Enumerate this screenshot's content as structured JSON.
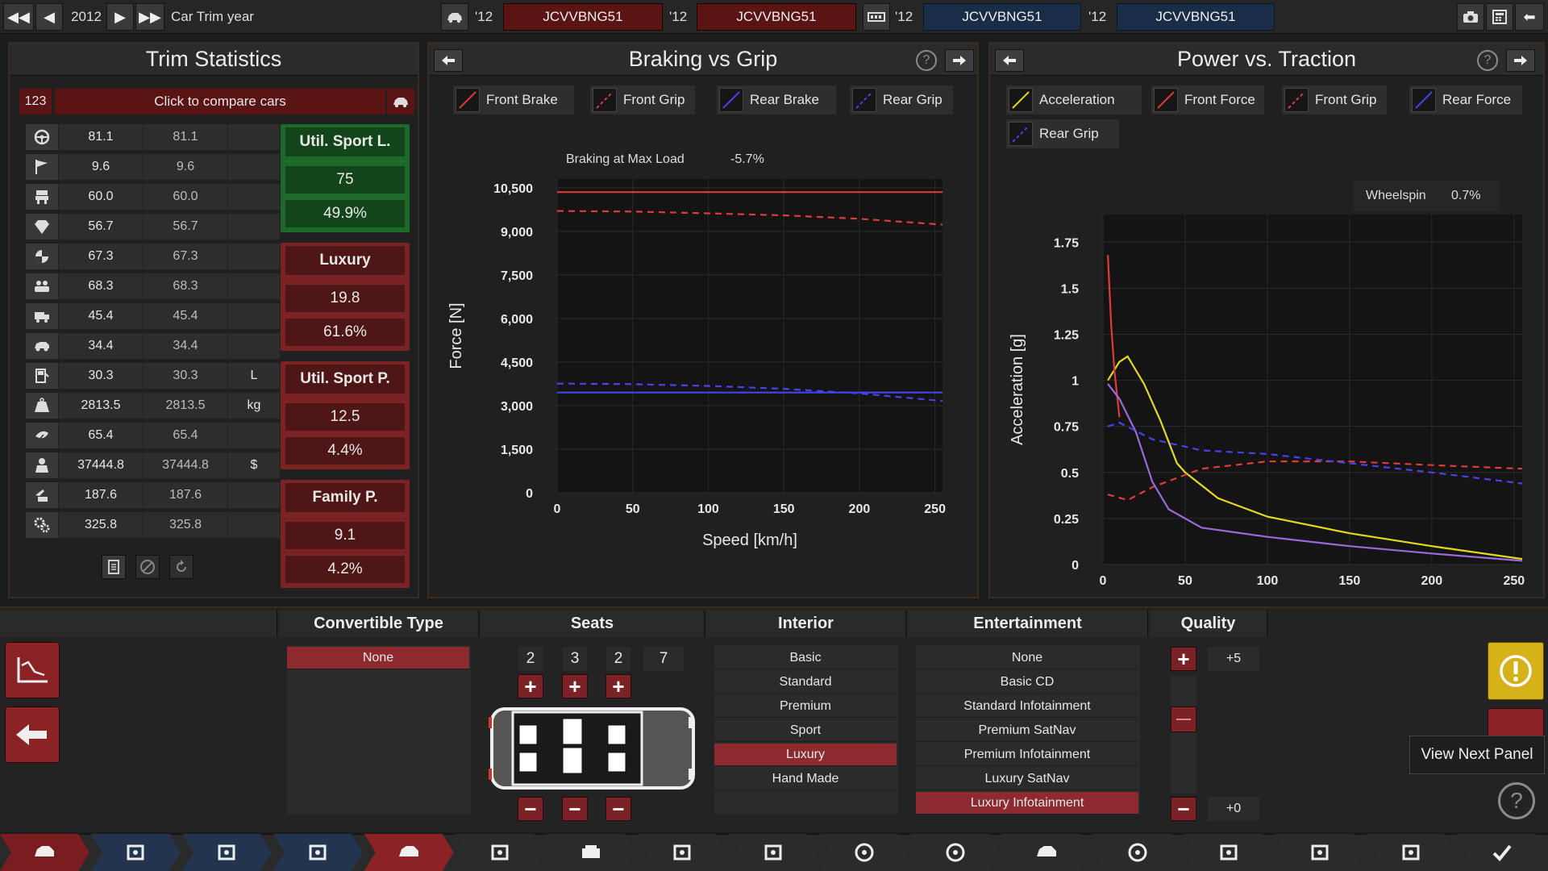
{
  "topbar": {
    "year": "2012",
    "title": "Car Trim year",
    "cars": [
      {
        "year": "'12",
        "code": "JCVVBNG51"
      },
      {
        "year": "'12",
        "code": "JCVVBNG51"
      },
      {
        "year": "'12",
        "code": "JCVVBNG51"
      },
      {
        "year": "'12",
        "code": "JCVVBNG51"
      }
    ]
  },
  "trim": {
    "title": "Trim Statistics",
    "compare_badge": "123",
    "compare_label": "Click to compare cars",
    "rows": [
      {
        "icon": "steering-wheel-icon",
        "a": "81.1",
        "b": "81.1",
        "unit": ""
      },
      {
        "icon": "race-flag-icon",
        "a": "9.6",
        "b": "9.6",
        "unit": ""
      },
      {
        "icon": "seat-icon",
        "a": "60.0",
        "b": "60.0",
        "unit": ""
      },
      {
        "icon": "gem-icon",
        "a": "56.7",
        "b": "56.7",
        "unit": ""
      },
      {
        "icon": "balance-icon",
        "a": "67.3",
        "b": "67.3",
        "unit": ""
      },
      {
        "icon": "passengers-icon",
        "a": "68.3",
        "b": "68.3",
        "unit": ""
      },
      {
        "icon": "truck-icon",
        "a": "45.4",
        "b": "45.4",
        "unit": ""
      },
      {
        "icon": "offroad-car-icon",
        "a": "34.4",
        "b": "34.4",
        "unit": ""
      },
      {
        "icon": "fuel-icon",
        "a": "30.3",
        "b": "30.3",
        "unit": "L"
      },
      {
        "icon": "weight-icon",
        "a": "2813.5",
        "b": "2813.5",
        "unit": "kg"
      },
      {
        "icon": "environment-icon",
        "a": "65.4",
        "b": "65.4",
        "unit": ""
      },
      {
        "icon": "cost-icon",
        "a": "37444.8",
        "b": "37444.8",
        "unit": "$"
      },
      {
        "icon": "service-icon",
        "a": "187.6",
        "b": "187.6",
        "unit": ""
      },
      {
        "icon": "gears-icon",
        "a": "325.8",
        "b": "325.8",
        "unit": ""
      }
    ],
    "categories": [
      {
        "name": "Util. Sport L.",
        "score": "75",
        "pct": "49.9%",
        "color": "#1e6a2a"
      },
      {
        "name": "Luxury",
        "score": "19.8",
        "pct": "61.6%",
        "color": "#7a2224"
      },
      {
        "name": "Util. Sport P.",
        "score": "12.5",
        "pct": "4.4%",
        "color": "#7a2224"
      },
      {
        "name": "Family P.",
        "score": "9.1",
        "pct": "4.2%",
        "color": "#7a2224"
      }
    ]
  },
  "braking": {
    "title": "Braking vs Grip",
    "legend": [
      "Front Brake",
      "Front Grip",
      "Rear Brake",
      "Rear Grip"
    ],
    "annotation_label": "Braking at Max Load",
    "annotation_value": "-5.7%"
  },
  "power": {
    "title": "Power vs. Traction",
    "legend": [
      "Acceleration",
      "Front Force",
      "Front Grip",
      "Rear Force",
      "Rear Grip"
    ],
    "annotation_label": "Wheelspin",
    "annotation_value": "0.7%"
  },
  "chart_data": [
    {
      "type": "line",
      "xlabel": "Speed [km/h]",
      "ylabel": "Force [N]",
      "xlim": [
        0,
        255
      ],
      "ylim": [
        0,
        10800
      ],
      "xticks": [
        "0",
        "50",
        "100",
        "150",
        "200",
        "250"
      ],
      "yticks": [
        "0",
        "1,500",
        "3,000",
        "4,500",
        "6,000",
        "7,500",
        "9,000",
        "10,500"
      ],
      "x": [
        0,
        50,
        100,
        150,
        200,
        255
      ],
      "series": [
        {
          "name": "Front Brake",
          "color": "#e03a3a",
          "dash": false,
          "values": [
            10350,
            10350,
            10350,
            10350,
            10350,
            10350
          ]
        },
        {
          "name": "Front Grip",
          "color": "#e03a3a",
          "dash": true,
          "values": [
            9700,
            9680,
            9620,
            9550,
            9430,
            9230
          ]
        },
        {
          "name": "Rear Brake",
          "color": "#4444ee",
          "dash": false,
          "values": [
            3450,
            3450,
            3450,
            3450,
            3450,
            3450
          ]
        },
        {
          "name": "Rear Grip",
          "color": "#4444ee",
          "dash": true,
          "values": [
            3760,
            3740,
            3680,
            3580,
            3420,
            3160
          ]
        }
      ]
    },
    {
      "type": "line",
      "xlabel": "Speed [km/h]",
      "ylabel": "Acceleration [g]",
      "xlim": [
        0,
        255
      ],
      "ylim": [
        0,
        1.9
      ],
      "xticks": [
        "0",
        "50",
        "100",
        "150",
        "200",
        "250"
      ],
      "yticks": [
        "0",
        "0.25",
        "0.5",
        "0.75",
        "1",
        "1.25",
        "1.5",
        "1.75"
      ],
      "series": [
        {
          "name": "Acceleration",
          "color": "#e6d81e",
          "dash": false,
          "x": [
            3,
            10,
            15,
            25,
            35,
            45,
            50,
            70,
            100,
            150,
            200,
            255
          ],
          "values": [
            1.0,
            1.1,
            1.13,
            0.98,
            0.78,
            0.55,
            0.5,
            0.36,
            0.26,
            0.17,
            0.1,
            0.03
          ]
        },
        {
          "name": "Front Force",
          "color": "#e03a3a",
          "dash": false,
          "x": [
            3,
            5,
            7,
            10
          ],
          "values": [
            1.68,
            1.3,
            1.05,
            0.8
          ]
        },
        {
          "name": "Front Grip",
          "color": "#e03a3a",
          "dash": true,
          "x": [
            3,
            15,
            30,
            60,
            100,
            150,
            200,
            255
          ],
          "values": [
            0.38,
            0.35,
            0.42,
            0.52,
            0.56,
            0.56,
            0.54,
            0.52
          ]
        },
        {
          "name": "Rear Force",
          "color": "#9a6ad8",
          "dash": false,
          "x": [
            3,
            10,
            20,
            30,
            40,
            60,
            100,
            150,
            200,
            255
          ],
          "values": [
            0.98,
            0.9,
            0.72,
            0.45,
            0.3,
            0.2,
            0.15,
            0.1,
            0.06,
            0.02
          ]
        },
        {
          "name": "Rear Grip",
          "color": "#4444ee",
          "dash": true,
          "x": [
            3,
            10,
            30,
            60,
            100,
            150,
            200,
            255
          ],
          "values": [
            0.75,
            0.77,
            0.68,
            0.62,
            0.6,
            0.55,
            0.5,
            0.44
          ]
        }
      ]
    }
  ],
  "bottom": {
    "convertible": {
      "title": "Convertible Type",
      "items": [
        "None"
      ],
      "selected": 0
    },
    "seats": {
      "title": "Seats",
      "counts": [
        "2",
        "3",
        "2",
        "7"
      ]
    },
    "interior": {
      "title": "Interior",
      "items": [
        "Basic",
        "Standard",
        "Premium",
        "Sport",
        "Luxury",
        "Hand Made"
      ],
      "selected": 4
    },
    "entertainment": {
      "title": "Entertainment",
      "items": [
        "None",
        "Basic CD",
        "Standard Infotainment",
        "Premium SatNav",
        "Premium Infotainment",
        "Luxury SatNav",
        "Luxury Infotainment"
      ],
      "selected": 6
    },
    "quality": {
      "title": "Quality",
      "max": "+5",
      "current": "+0",
      "level_fraction": 0.5
    },
    "tooltip": "View Next Panel"
  },
  "colors": {
    "accent_red": "#8c2a2f",
    "accent_green": "#1e6a2a",
    "warning_yellow": "#d6b21a"
  }
}
